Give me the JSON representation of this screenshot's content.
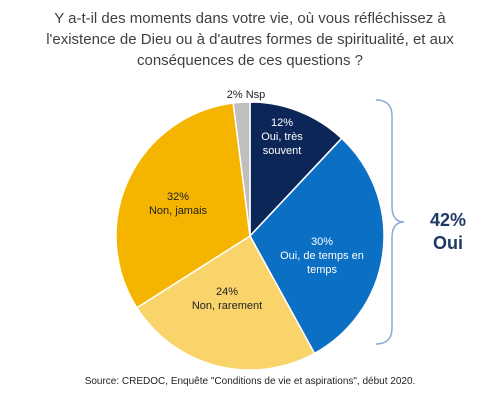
{
  "title_lines": [
    "Y a-t-il des moments dans votre vie, où vous réfléchissez à",
    "l'existence de Dieu ou à d'autres formes de spiritualité, et aux",
    "conséquences  de ces questions ?"
  ],
  "source": "Source: CREDOC, Enquête \"Conditions de vie et aspirations\", début 2020.",
  "colors": {
    "bracket": "#8fa9d6",
    "total_text": "#1f3864"
  },
  "chart_data": {
    "type": "pie",
    "title": "Y a-t-il des moments dans votre vie, où vous réfléchissez à l'existence de Dieu ou à d'autres formes de spiritualité, et aux conséquences  de ces questions ?",
    "slices": [
      {
        "label_lines": [
          "12%",
          "Oui, très",
          "souvent"
        ],
        "label": "Oui, très souvent",
        "value": 12,
        "color": "#0d2658",
        "text_color": "#ffffff"
      },
      {
        "label_lines": [
          "30%",
          "Oui, de temps en",
          "temps"
        ],
        "label": "Oui, de temps en temps",
        "value": 30,
        "color": "#0b6fc4",
        "text_color": "#ffffff"
      },
      {
        "label_lines": [
          "24%",
          "Non, rarement"
        ],
        "label": "Non, rarement",
        "value": 24,
        "color": "#f8d46a",
        "text_color": "#222222"
      },
      {
        "label_lines": [
          "32%",
          "Non, jamais"
        ],
        "label": "Non, jamais",
        "value": 32,
        "color": "#f4b400",
        "text_color": "#222222"
      },
      {
        "label_lines": [
          "2% Nsp"
        ],
        "label": "Nsp",
        "value": 2,
        "color": "#bfbfbf",
        "text_color": "#222222"
      }
    ],
    "annotation": {
      "value_text": "42%",
      "label": "Oui"
    }
  }
}
